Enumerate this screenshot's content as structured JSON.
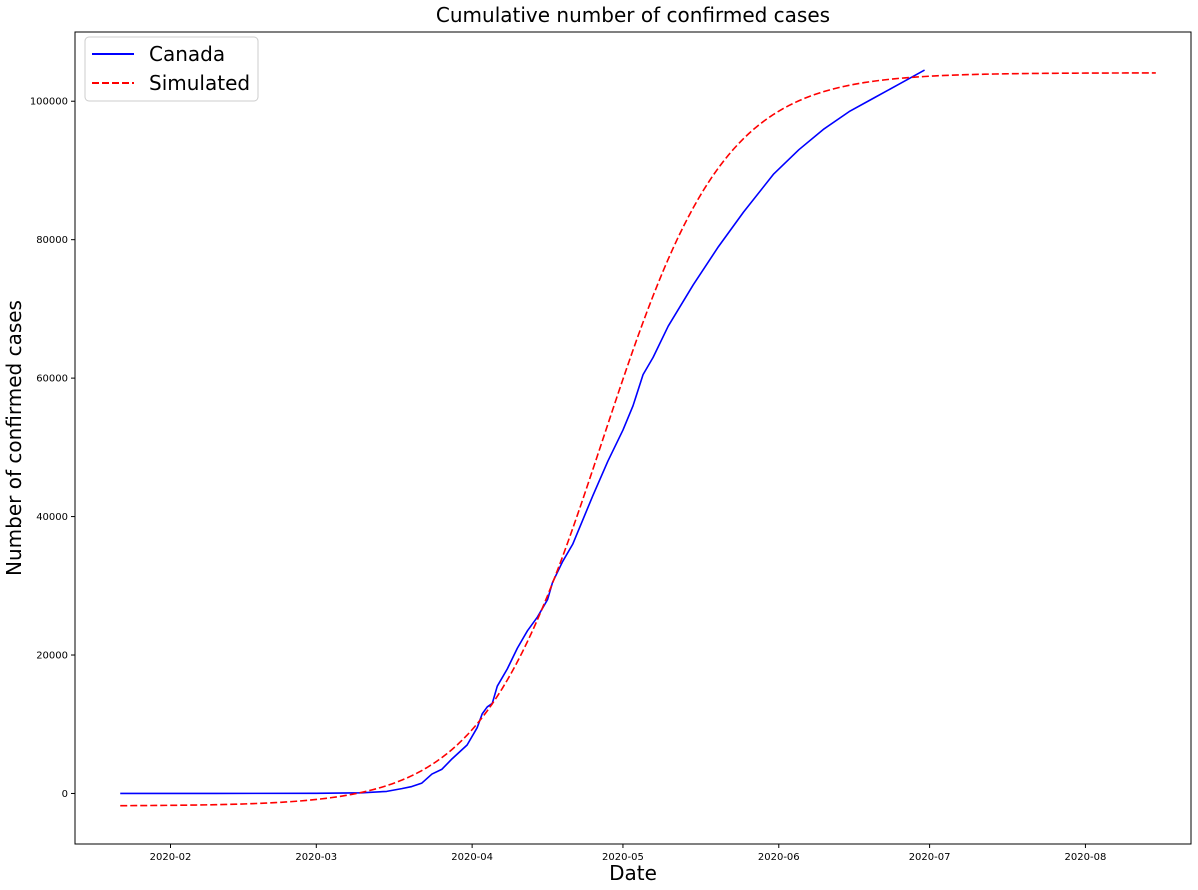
{
  "chart_data": {
    "type": "line",
    "title": "Cumulative number of confirmed cases",
    "xlabel": "Date",
    "ylabel": "Number of confirmed cases",
    "xlim": [
      "2020-01-13",
      "2020-08-22"
    ],
    "ylim": [
      -7300,
      110000
    ],
    "grid": false,
    "legend_position": "upper-left",
    "x_ticks": [
      "2020-02",
      "2020-03",
      "2020-04",
      "2020-05",
      "2020-06",
      "2020-07",
      "2020-08"
    ],
    "y_ticks": [
      0,
      20000,
      40000,
      60000,
      80000,
      100000
    ],
    "series": [
      {
        "name": "Canada",
        "color": "#0000ff",
        "style": "solid",
        "points": [
          [
            "2020-01-22",
            0
          ],
          [
            "2020-02-10",
            7
          ],
          [
            "2020-03-01",
            24
          ],
          [
            "2020-03-10",
            90
          ],
          [
            "2020-03-15",
            300
          ],
          [
            "2020-03-18",
            700
          ],
          [
            "2020-03-20",
            1000
          ],
          [
            "2020-03-22",
            1500
          ],
          [
            "2020-03-24",
            2800
          ],
          [
            "2020-03-26",
            3500
          ],
          [
            "2020-03-28",
            5000
          ],
          [
            "2020-03-31",
            7000
          ],
          [
            "2020-04-02",
            9500
          ],
          [
            "2020-04-03",
            11500
          ],
          [
            "2020-04-04",
            12500
          ],
          [
            "2020-04-05",
            13000
          ],
          [
            "2020-04-06",
            15500
          ],
          [
            "2020-04-08",
            18000
          ],
          [
            "2020-04-10",
            21000
          ],
          [
            "2020-04-12",
            23500
          ],
          [
            "2020-04-14",
            25500
          ],
          [
            "2020-04-16",
            28000
          ],
          [
            "2020-04-17",
            30500
          ],
          [
            "2020-04-19",
            33500
          ],
          [
            "2020-04-21",
            36000
          ],
          [
            "2020-04-23",
            39500
          ],
          [
            "2020-04-25",
            43000
          ],
          [
            "2020-04-28",
            48000
          ],
          [
            "2020-05-01",
            52500
          ],
          [
            "2020-05-03",
            56000
          ],
          [
            "2020-05-05",
            60500
          ],
          [
            "2020-05-07",
            63000
          ],
          [
            "2020-05-10",
            67500
          ],
          [
            "2020-05-15",
            73500
          ],
          [
            "2020-05-20",
            79000
          ],
          [
            "2020-05-25",
            84000
          ],
          [
            "2020-05-31",
            89500
          ],
          [
            "2020-06-05",
            93000
          ],
          [
            "2020-06-10",
            96000
          ],
          [
            "2020-06-15",
            98500
          ],
          [
            "2020-06-20",
            100500
          ],
          [
            "2020-06-25",
            102500
          ],
          [
            "2020-06-30",
            104500
          ]
        ]
      },
      {
        "name": "Simulated",
        "color": "#ff0000",
        "style": "dashed",
        "logistic": {
          "start": "2020-01-22",
          "end": "2020-08-15",
          "L": 105900,
          "k": 0.0828,
          "t0": "2020-04-27",
          "offset": -1800
        }
      }
    ]
  }
}
